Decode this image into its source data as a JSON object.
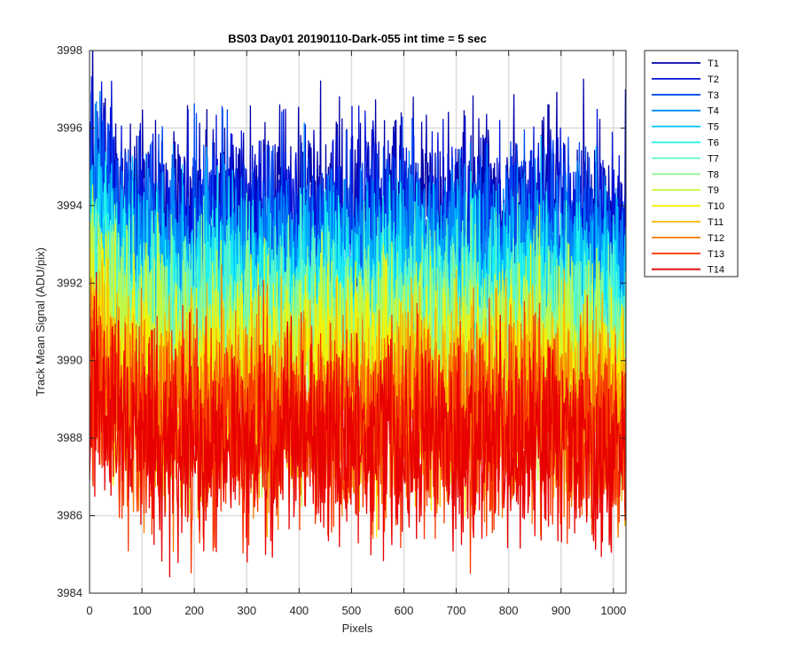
{
  "chart_data": {
    "type": "line",
    "title": "BS03 Day01 20190110-Dark-055 int time = 5 sec",
    "xlabel": "Pixels",
    "ylabel": "Track Mean Signal (ADU/pix)",
    "xlim": [
      0,
      1024
    ],
    "ylim": [
      3984,
      3998
    ],
    "xticks": [
      0,
      100,
      200,
      300,
      400,
      500,
      600,
      700,
      800,
      900,
      1000
    ],
    "yticks": [
      3984,
      3986,
      3988,
      3990,
      3992,
      3994,
      3996,
      3998
    ],
    "grid": true,
    "legend_position": "outside-top-right",
    "n_points": 1024,
    "noise_amplitude": 1.3,
    "series": [
      {
        "name": "T1",
        "color": "#0000a8",
        "mean_start": 3995.5,
        "mean_mid": 3993.9,
        "mean_end": 3993.4
      },
      {
        "name": "T2",
        "color": "#0010d8",
        "mean_start": 3995.0,
        "mean_mid": 3993.5,
        "mean_end": 3993.0
      },
      {
        "name": "T3",
        "color": "#0048f0",
        "mean_start": 3994.6,
        "mean_mid": 3993.0,
        "mean_end": 3992.6
      },
      {
        "name": "T4",
        "color": "#0088f8",
        "mean_start": 3994.1,
        "mean_mid": 3992.5,
        "mean_end": 3992.1
      },
      {
        "name": "T5",
        "color": "#00c0ff",
        "mean_start": 3993.6,
        "mean_mid": 3992.0,
        "mean_end": 3991.6
      },
      {
        "name": "T6",
        "color": "#20f0f0",
        "mean_start": 3993.1,
        "mean_mid": 3991.5,
        "mean_end": 3991.1
      },
      {
        "name": "T7",
        "color": "#60f8c8",
        "mean_start": 3992.6,
        "mean_mid": 3991.0,
        "mean_end": 3990.6
      },
      {
        "name": "T8",
        "color": "#90f890",
        "mean_start": 3992.1,
        "mean_mid": 3990.5,
        "mean_end": 3990.1
      },
      {
        "name": "T9",
        "color": "#c8f840",
        "mean_start": 3991.6,
        "mean_mid": 3990.0,
        "mean_end": 3989.6
      },
      {
        "name": "T10",
        "color": "#f8f000",
        "mean_start": 3991.1,
        "mean_mid": 3989.5,
        "mean_end": 3989.1
      },
      {
        "name": "T11",
        "color": "#f8b800",
        "mean_start": 3990.6,
        "mean_mid": 3989.0,
        "mean_end": 3988.7
      },
      {
        "name": "T12",
        "color": "#f87800",
        "mean_start": 3990.1,
        "mean_mid": 3988.6,
        "mean_end": 3988.3
      },
      {
        "name": "T13",
        "color": "#f83800",
        "mean_start": 3989.6,
        "mean_mid": 3988.2,
        "mean_end": 3987.9
      },
      {
        "name": "T14",
        "color": "#e80000",
        "mean_start": 3989.2,
        "mean_mid": 3987.9,
        "mean_end": 3987.6
      }
    ]
  }
}
